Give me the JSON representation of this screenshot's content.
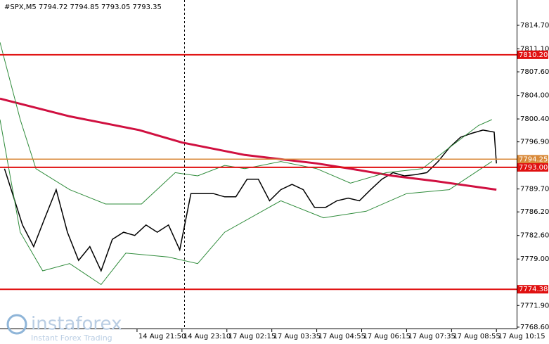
{
  "chart_data": {
    "type": "line",
    "title": "#SPX,M5  7794.72 7794.85 7793.05 7793.35",
    "watermark": {
      "brand": "instaforex",
      "slogan": "Instant Forex Trading"
    },
    "xlim": [
      0,
      230
    ],
    "ylim": [
      7768.92,
      7818.57
    ],
    "yticks": [
      {
        "value": 7814.7,
        "label": "7814.70"
      },
      {
        "value": 7811.1,
        "label": "7811.10"
      },
      {
        "value": 7807.6,
        "label": "7807.60"
      },
      {
        "value": 7804.0,
        "label": "7804.00"
      },
      {
        "value": 7800.4,
        "label": "7800.40"
      },
      {
        "value": 7796.9,
        "label": "7796.90"
      },
      {
        "value": 7789.7,
        "label": "7789.70"
      },
      {
        "value": 7786.2,
        "label": "7786.20"
      },
      {
        "value": 7782.6,
        "label": "7782.60"
      },
      {
        "value": 7779.0,
        "label": "7779.00"
      },
      {
        "value": 7771.9,
        "label": "7771.90"
      },
      {
        "value": 7768.6,
        "label": "7768.60"
      }
    ],
    "xticks": [
      {
        "value": 61,
        "label": "14 Aug 21:50"
      },
      {
        "value": 81,
        "label": "14 Aug 23:10"
      },
      {
        "value": 101,
        "label": "17 Aug 02:15"
      },
      {
        "value": 121,
        "label": "17 Aug 03:35"
      },
      {
        "value": 141,
        "label": "17 Aug 04:55"
      },
      {
        "value": 161,
        "label": "17 Aug 06:15"
      },
      {
        "value": 181,
        "label": "17 Aug 07:35"
      },
      {
        "value": 201,
        "label": "17 Aug 08:55"
      },
      {
        "value": 221,
        "label": "17 Aug 10:15"
      }
    ],
    "levels": [
      {
        "value": 7810.2,
        "label": "7810.20",
        "color": "#e01010"
      },
      {
        "value": 7794.25,
        "label": "7794.25",
        "color": "#d98a3a"
      },
      {
        "value": 7793.0,
        "label": "7793.00",
        "color": "#e01010"
      },
      {
        "value": 7774.38,
        "label": "7774.38",
        "color": "#e01010"
      }
    ],
    "series": [
      {
        "color": "#000000",
        "width": 1.5,
        "x": [
          2,
          5,
          10,
          15,
          20,
          25,
          30,
          35,
          40,
          45,
          50,
          55,
          60,
          65,
          70,
          75,
          80,
          85,
          90,
          95,
          100,
          105,
          110,
          115,
          120,
          125,
          130,
          135,
          140,
          145,
          150,
          155,
          160,
          165,
          170,
          175,
          180,
          185,
          190,
          195,
          200,
          205,
          210,
          215,
          220,
          221
        ],
        "values": [
          7792.8,
          7789.6,
          7784.2,
          7780.9,
          7785.3,
          7789.6,
          7783.1,
          7778.8,
          7780.9,
          7777.2,
          7782.0,
          7783.1,
          7782.6,
          7784.2,
          7783.1,
          7784.2,
          7780.4,
          7789.0,
          7789.0,
          7789.0,
          7788.5,
          7788.5,
          7791.2,
          7791.2,
          7787.9,
          7789.6,
          7790.4,
          7789.6,
          7786.9,
          7786.9,
          7787.9,
          7788.3,
          7787.9,
          7789.6,
          7791.2,
          7792.2,
          7791.7,
          7791.9,
          7792.2,
          7793.9,
          7796.0,
          7797.6,
          7798.2,
          7798.7,
          7798.4,
          7793.6
        ]
      },
      {
        "color": "#d01040",
        "width": 3,
        "x": [
          0,
          31,
          62,
          81,
          109,
          141,
          156,
          175,
          194,
          221
        ],
        "values": [
          7803.5,
          7800.8,
          7798.7,
          7796.8,
          7794.9,
          7793.6,
          7792.8,
          7791.7,
          7790.9,
          7789.6
        ]
      },
      {
        "color": "#2e8b3a",
        "width": 1,
        "x": [
          0,
          9,
          16,
          31,
          47,
          63,
          78,
          88,
          100,
          109,
          125,
          141,
          156,
          172,
          188,
          200,
          213,
          219
        ],
        "values": [
          7812.1,
          7800.3,
          7792.8,
          7789.6,
          7787.4,
          7787.4,
          7792.2,
          7791.7,
          7793.3,
          7792.8,
          7793.9,
          7792.8,
          7790.6,
          7792.2,
          7792.8,
          7796.0,
          7799.4,
          7800.3
        ]
      },
      {
        "color": "#2e8b3a",
        "width": 1,
        "x": [
          0,
          9,
          19,
          31,
          45,
          56,
          75,
          88,
          100,
          125,
          144,
          163,
          181,
          200,
          219
        ],
        "values": [
          7800.3,
          7783.1,
          7777.2,
          7778.3,
          7775.1,
          7779.9,
          7779.3,
          7778.3,
          7783.1,
          7787.9,
          7785.3,
          7786.3,
          7789.0,
          7789.6,
          7793.9
        ]
      }
    ]
  }
}
